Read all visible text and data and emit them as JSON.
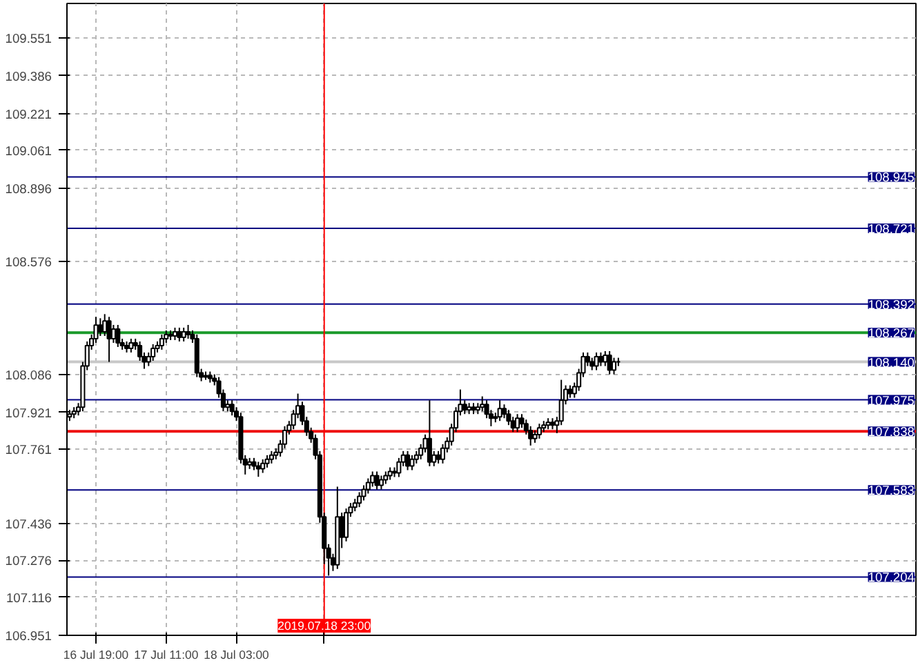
{
  "chart_data": {
    "type": "candlestick",
    "categories": [
      null,
      null,
      null,
      null,
      null,
      null,
      "16 Jul 19:00",
      null,
      null,
      null,
      null,
      null,
      null,
      null,
      null,
      null,
      null,
      null,
      null,
      null,
      null,
      null,
      "17 Jul 11:00",
      null,
      null,
      null,
      null,
      null,
      null,
      null,
      null,
      null,
      null,
      null,
      null,
      null,
      null,
      null,
      "18 Jul 03:00",
      null,
      null,
      null,
      null,
      null,
      null,
      null,
      null,
      null,
      null,
      null,
      null,
      null,
      null,
      null,
      null,
      null,
      null,
      null,
      "2019.07.18 23:00",
      null,
      null,
      null,
      null,
      null,
      null,
      null,
      null,
      null,
      null,
      null,
      null,
      null,
      null,
      null,
      null,
      null,
      null,
      null,
      null,
      null,
      null,
      null,
      null,
      null,
      null,
      null,
      null,
      null,
      null,
      null,
      null,
      null,
      null,
      null,
      null,
      null,
      null,
      null,
      null,
      null,
      null,
      null,
      null,
      null,
      null,
      null,
      null,
      null,
      null,
      null,
      null,
      null,
      null,
      null,
      null,
      null,
      null,
      null,
      null,
      null,
      null,
      null,
      null,
      null,
      null,
      null
    ],
    "ohlc": [
      [
        107.901,
        107.931,
        107.883,
        107.913
      ],
      [
        107.913,
        107.943,
        107.895,
        107.925
      ],
      [
        107.925,
        107.961,
        107.907,
        107.943
      ],
      [
        107.943,
        108.14,
        107.925,
        108.122
      ],
      [
        108.122,
        108.229,
        108.104,
        108.211
      ],
      [
        108.211,
        108.259,
        108.193,
        108.241
      ],
      [
        108.241,
        108.336,
        108.223,
        108.3
      ],
      [
        108.3,
        108.33,
        108.253,
        108.271
      ],
      [
        108.271,
        108.348,
        108.253,
        108.318
      ],
      [
        108.318,
        108.336,
        108.14,
        108.241
      ],
      [
        108.241,
        108.301,
        108.223,
        108.283
      ],
      [
        108.283,
        108.301,
        108.205,
        108.223
      ],
      [
        108.223,
        108.241,
        108.193,
        108.211
      ],
      [
        108.211,
        108.229,
        108.181,
        108.199
      ],
      [
        108.199,
        108.241,
        108.181,
        108.223
      ],
      [
        108.223,
        108.241,
        108.193,
        108.211
      ],
      [
        108.211,
        108.229,
        108.145,
        108.163
      ],
      [
        108.163,
        108.181,
        108.11,
        108.14
      ],
      [
        108.14,
        108.181,
        108.122,
        108.163
      ],
      [
        108.163,
        108.217,
        108.145,
        108.199
      ],
      [
        108.199,
        108.229,
        108.181,
        108.211
      ],
      [
        108.211,
        108.259,
        108.193,
        108.241
      ],
      [
        108.241,
        108.277,
        108.223,
        108.259
      ],
      [
        108.259,
        108.277,
        108.235,
        108.253
      ],
      [
        108.253,
        108.289,
        108.235,
        108.271
      ],
      [
        108.271,
        108.289,
        108.229,
        108.247
      ],
      [
        108.247,
        108.289,
        108.229,
        108.271
      ],
      [
        108.271,
        108.301,
        108.241,
        108.259
      ],
      [
        108.259,
        108.277,
        108.223,
        108.241
      ],
      [
        108.241,
        108.259,
        108.074,
        108.092
      ],
      [
        108.092,
        108.11,
        108.056,
        108.074
      ],
      [
        108.074,
        108.098,
        108.062,
        108.08
      ],
      [
        108.08,
        108.098,
        108.05,
        108.068
      ],
      [
        108.068,
        108.086,
        108.038,
        108.056
      ],
      [
        108.056,
        108.074,
        107.984,
        108.002
      ],
      [
        108.002,
        108.02,
        107.925,
        107.943
      ],
      [
        107.943,
        107.973,
        107.925,
        107.955
      ],
      [
        107.955,
        107.973,
        107.907,
        107.925
      ],
      [
        107.925,
        107.943,
        107.883,
        107.901
      ],
      [
        107.901,
        107.919,
        107.698,
        107.716
      ],
      [
        107.716,
        107.734,
        107.65,
        107.692
      ],
      [
        107.692,
        107.722,
        107.674,
        107.704
      ],
      [
        107.704,
        107.722,
        107.669,
        107.687
      ],
      [
        107.687,
        107.705,
        107.64,
        107.675
      ],
      [
        107.675,
        107.716,
        107.657,
        107.698
      ],
      [
        107.698,
        107.734,
        107.68,
        107.716
      ],
      [
        107.716,
        107.752,
        107.698,
        107.734
      ],
      [
        107.734,
        107.764,
        107.716,
        107.746
      ],
      [
        107.746,
        107.8,
        107.728,
        107.782
      ],
      [
        107.782,
        107.86,
        107.764,
        107.842
      ],
      [
        107.842,
        107.883,
        107.824,
        107.865
      ],
      [
        107.865,
        107.931,
        107.847,
        107.913
      ],
      [
        107.913,
        108.002,
        107.895,
        107.949
      ],
      [
        107.949,
        107.967,
        107.865,
        107.883
      ],
      [
        107.883,
        107.901,
        107.818,
        107.836
      ],
      [
        107.836,
        107.854,
        107.788,
        107.806
      ],
      [
        107.806,
        107.824,
        107.716,
        107.734
      ],
      [
        107.734,
        107.752,
        107.44,
        107.466
      ],
      [
        107.466,
        107.484,
        107.26,
        107.329
      ],
      [
        107.329,
        107.347,
        107.21,
        107.287
      ],
      [
        107.287,
        107.305,
        107.23,
        107.257
      ],
      [
        107.257,
        107.597,
        107.239,
        107.466
      ],
      [
        107.466,
        107.484,
        107.33,
        107.377
      ],
      [
        107.377,
        107.502,
        107.359,
        107.484
      ],
      [
        107.484,
        107.526,
        107.466,
        107.508
      ],
      [
        107.508,
        107.544,
        107.49,
        107.526
      ],
      [
        107.526,
        107.573,
        107.508,
        107.555
      ],
      [
        107.555,
        107.603,
        107.537,
        107.585
      ],
      [
        107.585,
        107.633,
        107.567,
        107.615
      ],
      [
        107.615,
        107.663,
        107.597,
        107.645
      ],
      [
        107.645,
        107.663,
        107.585,
        107.603
      ],
      [
        107.603,
        107.645,
        107.585,
        107.627
      ],
      [
        107.627,
        107.663,
        107.609,
        107.645
      ],
      [
        107.645,
        107.681,
        107.627,
        107.663
      ],
      [
        107.663,
        107.681,
        107.639,
        107.657
      ],
      [
        107.657,
        107.722,
        107.639,
        107.704
      ],
      [
        107.704,
        107.752,
        107.686,
        107.734
      ],
      [
        107.734,
        107.752,
        107.669,
        107.687
      ],
      [
        107.687,
        107.734,
        107.669,
        107.716
      ],
      [
        107.716,
        107.752,
        107.698,
        107.734
      ],
      [
        107.734,
        107.782,
        107.716,
        107.764
      ],
      [
        107.764,
        107.824,
        107.746,
        107.806
      ],
      [
        107.806,
        107.973,
        107.686,
        107.704
      ],
      [
        107.704,
        107.752,
        107.686,
        107.734
      ],
      [
        107.734,
        107.752,
        107.698,
        107.716
      ],
      [
        107.716,
        107.782,
        107.698,
        107.764
      ],
      [
        107.764,
        107.812,
        107.746,
        107.794
      ],
      [
        107.794,
        107.871,
        107.776,
        107.853
      ],
      [
        107.853,
        107.943,
        107.835,
        107.925
      ],
      [
        107.925,
        108.02,
        107.907,
        107.955
      ],
      [
        107.955,
        107.973,
        107.913,
        107.931
      ],
      [
        107.931,
        107.961,
        107.913,
        107.943
      ],
      [
        107.943,
        107.961,
        107.913,
        107.931
      ],
      [
        107.931,
        107.961,
        107.913,
        107.943
      ],
      [
        107.943,
        107.99,
        107.925,
        107.955
      ],
      [
        107.955,
        107.973,
        107.895,
        107.913
      ],
      [
        107.913,
        107.931,
        107.86,
        107.895
      ],
      [
        107.895,
        107.919,
        107.877,
        107.901
      ],
      [
        107.901,
        107.973,
        107.883,
        107.937
      ],
      [
        107.937,
        107.955,
        107.895,
        107.913
      ],
      [
        107.913,
        107.931,
        107.865,
        107.883
      ],
      [
        107.883,
        107.901,
        107.835,
        107.853
      ],
      [
        107.853,
        107.913,
        107.835,
        107.895
      ],
      [
        107.895,
        107.913,
        107.853,
        107.871
      ],
      [
        107.871,
        107.889,
        107.824,
        107.842
      ],
      [
        107.842,
        107.86,
        107.776,
        107.806
      ],
      [
        107.806,
        107.842,
        107.788,
        107.824
      ],
      [
        107.824,
        107.871,
        107.806,
        107.853
      ],
      [
        107.853,
        107.883,
        107.835,
        107.865
      ],
      [
        107.865,
        107.895,
        107.847,
        107.877
      ],
      [
        107.877,
        107.895,
        107.847,
        107.865
      ],
      [
        107.865,
        107.901,
        107.83,
        107.883
      ],
      [
        107.883,
        108.062,
        107.865,
        107.973
      ],
      [
        107.973,
        108.038,
        107.955,
        108.02
      ],
      [
        108.02,
        108.038,
        107.984,
        108.002
      ],
      [
        108.002,
        108.05,
        107.984,
        108.032
      ],
      [
        108.032,
        108.11,
        108.014,
        108.092
      ],
      [
        108.092,
        108.181,
        108.074,
        108.163
      ],
      [
        108.163,
        108.181,
        108.122,
        108.14
      ],
      [
        108.14,
        108.158,
        108.104,
        108.122
      ],
      [
        108.122,
        108.181,
        108.104,
        108.163
      ],
      [
        108.163,
        108.181,
        108.122,
        108.14
      ],
      [
        108.14,
        108.187,
        108.122,
        108.169
      ],
      [
        108.169,
        108.187,
        108.086,
        108.104
      ],
      [
        108.104,
        108.158,
        108.086,
        108.14
      ],
      [
        108.14,
        108.158,
        108.122,
        108.14
      ]
    ],
    "ylim": [
      106.95,
      109.7
    ],
    "yticks": [
      109.551,
      109.386,
      109.221,
      109.061,
      108.896,
      108.576,
      108.086,
      107.921,
      107.761,
      107.436,
      107.276,
      107.116,
      106.951
    ],
    "ref_lines": [
      {
        "axis": "y",
        "value": 108.945,
        "label": "108.945",
        "color": "#000080"
      },
      {
        "axis": "y",
        "value": 108.721,
        "label": "108.721",
        "color": "#000080"
      },
      {
        "axis": "y",
        "value": 108.392,
        "label": "108.392",
        "color": "#000080"
      },
      {
        "axis": "y",
        "value": 108.267,
        "label": "108.267",
        "color": "#1a9a2a"
      },
      {
        "axis": "y",
        "value": 108.14,
        "label": "108.140",
        "color": "#c8c8c8"
      },
      {
        "axis": "y",
        "value": 107.975,
        "label": "107.975",
        "color": "#000080"
      },
      {
        "axis": "y",
        "value": 107.838,
        "label": "107.838",
        "color": "#ee1111"
      },
      {
        "axis": "y",
        "value": 107.583,
        "label": "107.583",
        "color": "#000080"
      },
      {
        "axis": "y",
        "value": 107.204,
        "label": "107.204",
        "color": "#000080"
      },
      {
        "axis": "x",
        "value": "2019.07.18 23:00",
        "color": "#ff0000"
      }
    ],
    "grid": true
  }
}
